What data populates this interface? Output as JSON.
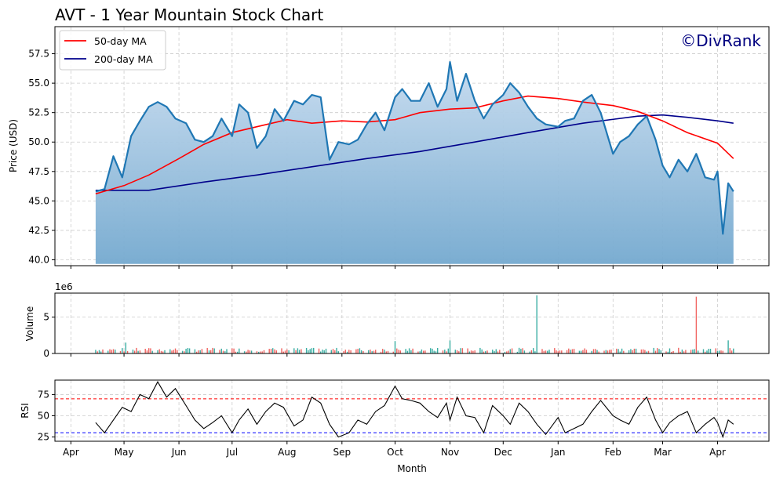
{
  "chart_data": [
    {
      "type": "area",
      "title": "AVT - 1 Year Mountain Stock Chart",
      "watermark": "©DivRank",
      "ylabel": "Price (USD)",
      "ylim": [
        39.5,
        59.8
      ],
      "yticks": [
        "40.0",
        "42.5",
        "45.0",
        "47.5",
        "50.0",
        "52.5",
        "55.0",
        "57.5"
      ],
      "legend_position": "top-left",
      "grid": true,
      "colors": {
        "price": "#1f77b4",
        "ma50": "#ff0000",
        "ma200": "#00008b",
        "fill_top": "#c6dbef",
        "fill_bottom": "#74a9cf",
        "watermark": "#00007f"
      },
      "series": [
        {
          "key": "price",
          "x": [
            "2024-04-15",
            "2024-04-20",
            "2024-04-25",
            "2024-04-30",
            "2024-05-05",
            "2024-05-10",
            "2024-05-15",
            "2024-05-20",
            "2024-05-25",
            "2024-05-30",
            "2024-06-05",
            "2024-06-10",
            "2024-06-15",
            "2024-06-20",
            "2024-06-25",
            "2024-07-01",
            "2024-07-05",
            "2024-07-10",
            "2024-07-15",
            "2024-07-20",
            "2024-07-25",
            "2024-07-30",
            "2024-08-05",
            "2024-08-10",
            "2024-08-15",
            "2024-08-20",
            "2024-08-25",
            "2024-08-30",
            "2024-09-05",
            "2024-09-10",
            "2024-09-15",
            "2024-09-20",
            "2024-09-25",
            "2024-10-01",
            "2024-10-05",
            "2024-10-10",
            "2024-10-15",
            "2024-10-20",
            "2024-10-25",
            "2024-10-30",
            "2024-11-01",
            "2024-11-05",
            "2024-11-10",
            "2024-11-15",
            "2024-11-20",
            "2024-11-25",
            "2024-12-01",
            "2024-12-05",
            "2024-12-10",
            "2024-12-15",
            "2024-12-20",
            "2024-12-25",
            "2025-01-01",
            "2025-01-05",
            "2025-01-10",
            "2025-01-15",
            "2025-01-20",
            "2025-01-25",
            "2025-02-01",
            "2025-02-05",
            "2025-02-10",
            "2025-02-15",
            "2025-02-20",
            "2025-02-25",
            "2025-03-01",
            "2025-03-05",
            "2025-03-10",
            "2025-03-15",
            "2025-03-20",
            "2025-03-25",
            "2025-03-30",
            "2025-04-01",
            "2025-04-04",
            "2025-04-07",
            "2025-04-10"
          ],
          "values": [
            45.8,
            46.0,
            48.8,
            47.0,
            50.5,
            51.8,
            53.0,
            53.4,
            53.0,
            52.0,
            51.6,
            50.2,
            50.0,
            50.5,
            52.0,
            50.5,
            53.2,
            52.5,
            49.5,
            50.5,
            52.8,
            51.8,
            53.5,
            53.2,
            54.0,
            53.8,
            48.5,
            50.0,
            49.8,
            50.2,
            51.5,
            52.5,
            51.0,
            53.8,
            54.5,
            53.5,
            53.5,
            55.0,
            53.0,
            54.5,
            56.8,
            53.5,
            55.8,
            53.5,
            52.0,
            53.2,
            54.0,
            55.0,
            54.2,
            53.0,
            52.0,
            51.5,
            51.3,
            51.8,
            52.0,
            53.5,
            54.0,
            52.5,
            49.0,
            50.0,
            50.5,
            51.5,
            52.2,
            50.2,
            48.0,
            47.0,
            48.5,
            47.5,
            49.0,
            47.0,
            46.8,
            47.5,
            42.2,
            46.5,
            45.8
          ]
        },
        {
          "key": "ma50",
          "name": "50-day MA",
          "x": [
            "2024-04-15",
            "2024-05-01",
            "2024-05-15",
            "2024-06-01",
            "2024-06-15",
            "2024-07-01",
            "2024-07-15",
            "2024-08-01",
            "2024-08-15",
            "2024-09-01",
            "2024-09-15",
            "2024-10-01",
            "2024-10-15",
            "2024-11-01",
            "2024-11-15",
            "2024-12-01",
            "2024-12-15",
            "2025-01-01",
            "2025-01-15",
            "2025-02-01",
            "2025-02-15",
            "2025-03-01",
            "2025-03-15",
            "2025-04-01",
            "2025-04-10"
          ],
          "values": [
            45.6,
            46.3,
            47.2,
            48.6,
            49.8,
            50.8,
            51.3,
            51.9,
            51.6,
            51.8,
            51.7,
            51.9,
            52.5,
            52.8,
            52.9,
            53.5,
            53.9,
            53.7,
            53.4,
            53.1,
            52.6,
            51.8,
            50.8,
            49.9,
            48.6
          ]
        },
        {
          "key": "ma200",
          "name": "200-day MA",
          "x": [
            "2024-04-15",
            "2024-05-15",
            "2024-06-15",
            "2024-07-15",
            "2024-08-15",
            "2024-09-15",
            "2024-10-15",
            "2024-11-15",
            "2024-12-15",
            "2025-01-15",
            "2025-02-15",
            "2025-03-01",
            "2025-03-15",
            "2025-04-01",
            "2025-04-10"
          ],
          "values": [
            45.9,
            45.9,
            46.6,
            47.2,
            47.9,
            48.6,
            49.2,
            50.0,
            50.8,
            51.6,
            52.2,
            52.3,
            52.1,
            51.8,
            51.6
          ]
        }
      ]
    },
    {
      "type": "bar",
      "ylabel": "Volume",
      "offset_label": "1e6",
      "ylim": [
        0,
        8.3
      ],
      "yticks": [
        "0",
        "5"
      ],
      "grid": true,
      "colors": {
        "up": "#26a69a",
        "down": "#ef5350"
      },
      "typical_volume_millions": 0.5,
      "spikes": [
        {
          "x": "2024-05-02",
          "value": 1.5
        },
        {
          "x": "2024-10-01",
          "value": 1.7
        },
        {
          "x": "2024-11-01",
          "value": 1.8
        },
        {
          "x": "2024-12-20",
          "value": 8.0,
          "direction": "up"
        },
        {
          "x": "2025-02-01",
          "value": 1.7
        },
        {
          "x": "2025-03-20",
          "value": 7.8,
          "direction": "down"
        },
        {
          "x": "2025-04-07",
          "value": 1.8
        }
      ]
    },
    {
      "type": "line",
      "ylabel": "RSI",
      "xlabel": "Month",
      "ylim": [
        20,
        92
      ],
      "yticks": [
        "25",
        "50",
        "75"
      ],
      "reference_lines": [
        {
          "value": 70,
          "color": "#ff0000"
        },
        {
          "value": 30,
          "color": "#0000ff"
        }
      ],
      "grid": true,
      "x": [
        "2024-04-15",
        "2024-04-20",
        "2024-04-25",
        "2024-04-30",
        "2024-05-05",
        "2024-05-10",
        "2024-05-15",
        "2024-05-20",
        "2024-05-25",
        "2024-05-30",
        "2024-06-05",
        "2024-06-10",
        "2024-06-15",
        "2024-06-20",
        "2024-06-25",
        "2024-07-01",
        "2024-07-05",
        "2024-07-10",
        "2024-07-15",
        "2024-07-20",
        "2024-07-25",
        "2024-07-30",
        "2024-08-05",
        "2024-08-10",
        "2024-08-15",
        "2024-08-20",
        "2024-08-25",
        "2024-08-30",
        "2024-09-05",
        "2024-09-10",
        "2024-09-15",
        "2024-09-20",
        "2024-09-25",
        "2024-10-01",
        "2024-10-05",
        "2024-10-10",
        "2024-10-15",
        "2024-10-20",
        "2024-10-25",
        "2024-10-30",
        "2024-11-01",
        "2024-11-05",
        "2024-11-10",
        "2024-11-15",
        "2024-11-20",
        "2024-11-25",
        "2024-12-01",
        "2024-12-05",
        "2024-12-10",
        "2024-12-15",
        "2024-12-20",
        "2024-12-25",
        "2025-01-01",
        "2025-01-05",
        "2025-01-10",
        "2025-01-15",
        "2025-01-20",
        "2025-01-25",
        "2025-02-01",
        "2025-02-05",
        "2025-02-10",
        "2025-02-15",
        "2025-02-20",
        "2025-02-25",
        "2025-03-01",
        "2025-03-05",
        "2025-03-10",
        "2025-03-15",
        "2025-03-20",
        "2025-03-25",
        "2025-03-30",
        "2025-04-01",
        "2025-04-04",
        "2025-04-07",
        "2025-04-10"
      ],
      "values": [
        42,
        30,
        45,
        60,
        55,
        75,
        70,
        90,
        72,
        82,
        62,
        45,
        35,
        42,
        50,
        30,
        45,
        58,
        40,
        55,
        65,
        60,
        38,
        45,
        72,
        65,
        40,
        25,
        30,
        45,
        40,
        55,
        62,
        85,
        70,
        68,
        65,
        55,
        48,
        65,
        45,
        72,
        50,
        48,
        30,
        62,
        50,
        40,
        65,
        55,
        40,
        28,
        48,
        30,
        35,
        40,
        55,
        68,
        50,
        45,
        40,
        60,
        72,
        45,
        30,
        42,
        50,
        55,
        30,
        40,
        48,
        42,
        25,
        45,
        40
      ]
    }
  ],
  "x_axis": {
    "months": [
      "Apr",
      "May",
      "Jun",
      "Jul",
      "Aug",
      "Sep",
      "Oct",
      "Nov",
      "Dec",
      "Jan",
      "Feb",
      "Mar",
      "Apr"
    ],
    "month_dates": [
      "2024-04-01",
      "2024-05-01",
      "2024-06-01",
      "2024-07-01",
      "2024-08-01",
      "2024-09-01",
      "2024-10-01",
      "2024-11-01",
      "2024-12-01",
      "2025-01-01",
      "2025-02-01",
      "2025-03-01",
      "2025-04-01"
    ],
    "range": [
      "2024-03-23",
      "2025-04-30"
    ]
  }
}
